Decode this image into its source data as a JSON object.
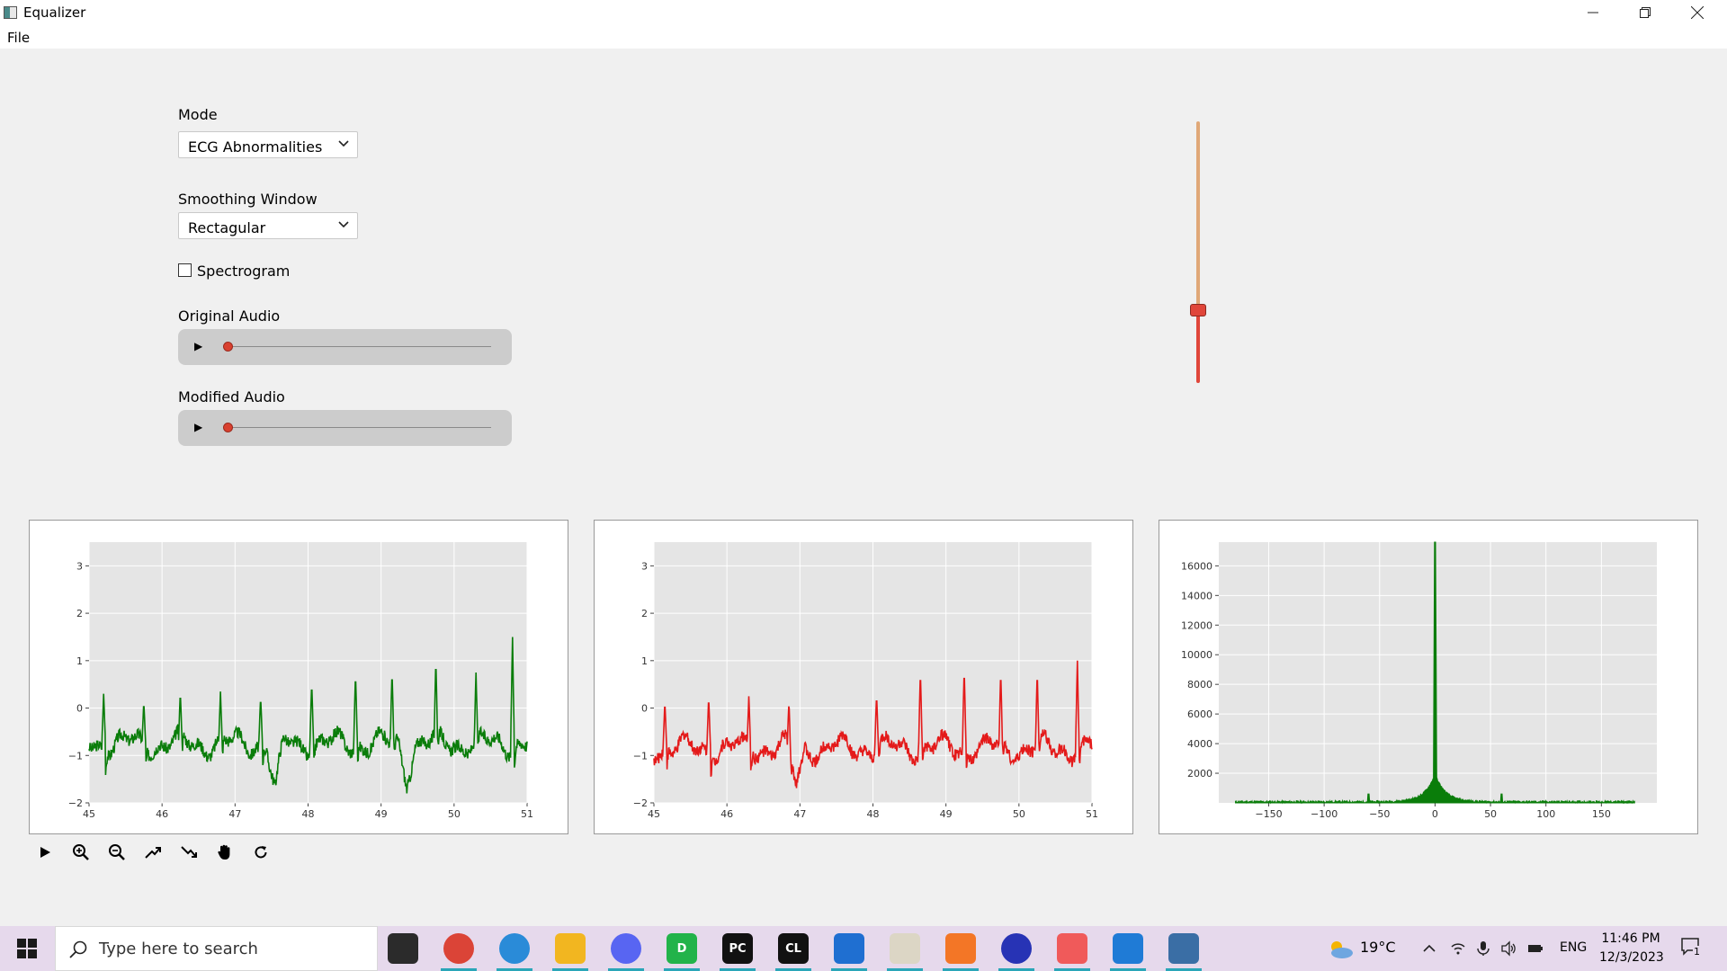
{
  "window": {
    "title": "Equalizer",
    "min_icon": "minimize-icon",
    "max_icon": "restore-icon",
    "close_icon": "close-icon"
  },
  "menu": {
    "file": "File"
  },
  "controls": {
    "mode_label": "Mode",
    "mode_value": "ECG Abnormalities",
    "smoothing_label": "Smoothing Window",
    "smoothing_value": "Rectagular",
    "spectrogram_label": "Spectrogram",
    "spectrogram_checked": false,
    "original_audio_label": "Original Audio",
    "modified_audio_label": "Modified Audio",
    "original_audio_progress": 0.0,
    "modified_audio_progress": 0.0,
    "slider_level": 0.28
  },
  "chart_data": [
    {
      "type": "line",
      "xlim": [
        45,
        51
      ],
      "ylim": [
        -2,
        3.5
      ],
      "xticks": [
        "45",
        "46",
        "47",
        "48",
        "49",
        "50",
        "51"
      ],
      "yticks": [
        "3",
        "2",
        "1",
        "0",
        "−1",
        "−2"
      ],
      "color": "#0a7d0a",
      "grid": true,
      "baseline": -0.75,
      "spikes": [
        [
          45.2,
          0.3
        ],
        [
          45.75,
          0.15
        ],
        [
          46.25,
          0.35
        ],
        [
          46.8,
          0.35
        ],
        [
          47.35,
          0.25
        ],
        [
          48.05,
          0.55
        ],
        [
          48.65,
          0.75
        ],
        [
          49.15,
          0.8
        ],
        [
          49.75,
          1.05
        ],
        [
          50.3,
          0.75
        ],
        [
          50.8,
          1.5
        ]
      ],
      "dips": [
        [
          47.55,
          -1.8
        ],
        [
          49.35,
          -1.45
        ]
      ]
    },
    {
      "type": "line",
      "xlim": [
        45,
        51
      ],
      "ylim": [
        -2,
        3.5
      ],
      "xticks": [
        "45",
        "46",
        "47",
        "48",
        "49",
        "50",
        "51"
      ],
      "yticks": [
        "3",
        "2",
        "1",
        "0",
        "−1",
        "−2"
      ],
      "color": "#e41a1a",
      "grid": true,
      "baseline": -0.85,
      "spikes": [
        [
          45.15,
          0.15
        ],
        [
          45.75,
          0.25
        ],
        [
          46.3,
          0.25
        ],
        [
          46.85,
          0.3
        ],
        [
          48.05,
          0.3
        ],
        [
          48.65,
          0.8
        ],
        [
          49.25,
          0.85
        ],
        [
          49.75,
          0.8
        ],
        [
          50.25,
          0.8
        ],
        [
          50.8,
          1.0
        ]
      ],
      "dips": [
        [
          46.95,
          -1.65
        ]
      ]
    },
    {
      "type": "area",
      "xlim": [
        -195,
        200
      ],
      "ylim": [
        0,
        17600
      ],
      "xticks": [
        "−150",
        "−100",
        "−50",
        "0",
        "50",
        "100",
        "150"
      ],
      "yticks": [
        "16000",
        "14000",
        "12000",
        "10000",
        "8000",
        "6000",
        "4000",
        "2000"
      ],
      "color": "#0a7d0a",
      "grid": true,
      "peak": [
        0,
        17600
      ],
      "secondary_peaks": [
        [
          0,
          9800
        ],
        [
          -60,
          600
        ],
        [
          60,
          600
        ]
      ]
    }
  ],
  "toolbar": [
    "play-icon",
    "zoom-in-icon",
    "zoom-out-icon",
    "trend-up-icon",
    "trend-down-icon",
    "pan-hand-icon",
    "reset-icon"
  ],
  "taskbar": {
    "search_placeholder": "Type here to search",
    "temperature": "19°C",
    "language": "ENG",
    "time": "11:46 PM",
    "date": "12/3/2023",
    "notification_count": "1",
    "apps": [
      {
        "name": "task-view-icon",
        "color": "#2b2b2b",
        "text": ""
      },
      {
        "name": "chrome-icon",
        "color": "#db4437",
        "text": ""
      },
      {
        "name": "edge-icon",
        "color": "#2a8bd8",
        "text": ""
      },
      {
        "name": "file-explorer-icon",
        "color": "#f2b620",
        "text": ""
      },
      {
        "name": "discord-icon",
        "color": "#5865f2",
        "text": ""
      },
      {
        "name": "datagrip-icon",
        "color": "#22b34a",
        "text": "D"
      },
      {
        "name": "pycharm-icon",
        "color": "#111111",
        "text": "PC"
      },
      {
        "name": "clion-icon",
        "color": "#111111",
        "text": "CL"
      },
      {
        "name": "mail-icon",
        "color": "#1f6fd1",
        "text": ""
      },
      {
        "name": "paint-icon",
        "color": "#dcd6c5",
        "text": ""
      },
      {
        "name": "jupyter-icon",
        "color": "#f37626",
        "text": ""
      },
      {
        "name": "audacity-icon",
        "color": "#2733b5",
        "text": ""
      },
      {
        "name": "gitkraken-icon",
        "color": "#f05a5a",
        "text": ""
      },
      {
        "name": "vscode-icon",
        "color": "#1f7bd6",
        "text": ""
      },
      {
        "name": "python-app-icon",
        "color": "#3a6ea5",
        "text": ""
      }
    ]
  }
}
